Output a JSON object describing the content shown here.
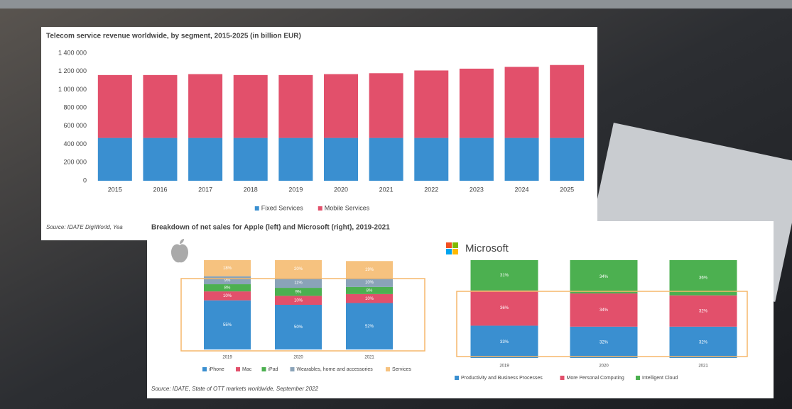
{
  "chart_data": [
    {
      "type": "stacked-bar",
      "title": "Telecom service revenue worldwide, by segment, 2015-2025 (in billion EUR)",
      "source": "Source: IDATE DigiWorld, Yea",
      "categories": [
        "2015",
        "2016",
        "2017",
        "2018",
        "2019",
        "2020",
        "2021",
        "2022",
        "2023",
        "2024",
        "2025"
      ],
      "series": [
        {
          "name": "Fixed Services",
          "color": "#3a8fd0",
          "values": [
            470000,
            470000,
            470000,
            470000,
            470000,
            470000,
            470000,
            470000,
            470000,
            470000,
            470000
          ]
        },
        {
          "name": "Mobile Services",
          "color": "#e2506b",
          "values": [
            690000,
            690000,
            700000,
            690000,
            690000,
            700000,
            710000,
            740000,
            760000,
            780000,
            800000
          ]
        }
      ],
      "ylim": [
        0,
        1400000
      ],
      "yticks": [
        0,
        {
          "value": 200000,
          "label": "200 000"
        },
        {
          "value": 400000,
          "label": "400 000"
        },
        {
          "value": 600000,
          "label": "600 000"
        },
        {
          "value": 800000,
          "label": "800 000"
        },
        {
          "value": 1000000,
          "label": "1 000 000"
        },
        {
          "value": 1200000,
          "label": "1 200 000"
        },
        {
          "value": 1400000,
          "label": "1 400 000"
        }
      ],
      "grid": false
    },
    {
      "type": "stacked-bar",
      "title": "Breakdown of net sales for Apple (left) and Microsoft (right), 2019-2021",
      "source": "Source: IDATE, State of OTT markets worldwide, September 2022",
      "categories": [
        "2019",
        "2020",
        "2021"
      ],
      "series": [
        {
          "name": "iPhone",
          "color": "#3a8fd0",
          "values": [
            55,
            50,
            52
          ],
          "value_labels": [
            "55%",
            "50%",
            "52%"
          ]
        },
        {
          "name": "Mac",
          "color": "#e2506b",
          "values": [
            10,
            10,
            10
          ],
          "value_labels": [
            "10%",
            "10%",
            "10%"
          ]
        },
        {
          "name": "iPad",
          "color": "#4cb050",
          "values": [
            8,
            9,
            8
          ],
          "value_labels": [
            "8%",
            "9%",
            "8%"
          ]
        },
        {
          "name": "Wearables, home and accessories",
          "color": "#8aa3b8",
          "values": [
            9,
            11,
            10
          ],
          "value_labels": [
            "9%",
            "11%",
            "10%"
          ]
        },
        {
          "name": "Services",
          "color": "#f6c27f",
          "values": [
            18,
            20,
            19
          ],
          "value_labels": [
            "18%",
            "20%",
            "19%"
          ]
        }
      ],
      "ylim": [
        0,
        100
      ],
      "grid": false
    },
    {
      "type": "stacked-bar",
      "title": "Microsoft",
      "categories": [
        "2019",
        "2020",
        "2021"
      ],
      "series": [
        {
          "name": "Productivity and Business Processes",
          "color": "#3a8fd0",
          "values": [
            33,
            32,
            32
          ],
          "value_labels": [
            "33%",
            "32%",
            "32%"
          ]
        },
        {
          "name": "More Personal Computing",
          "color": "#e2506b",
          "values": [
            36,
            34,
            32
          ],
          "value_labels": [
            "36%",
            "34%",
            "32%"
          ]
        },
        {
          "name": "Intelligent Cloud",
          "color": "#4cb050",
          "values": [
            31,
            34,
            36
          ],
          "value_labels": [
            "31%",
            "34%",
            "36%"
          ]
        }
      ],
      "ylim": [
        0,
        100
      ],
      "grid": false
    }
  ]
}
